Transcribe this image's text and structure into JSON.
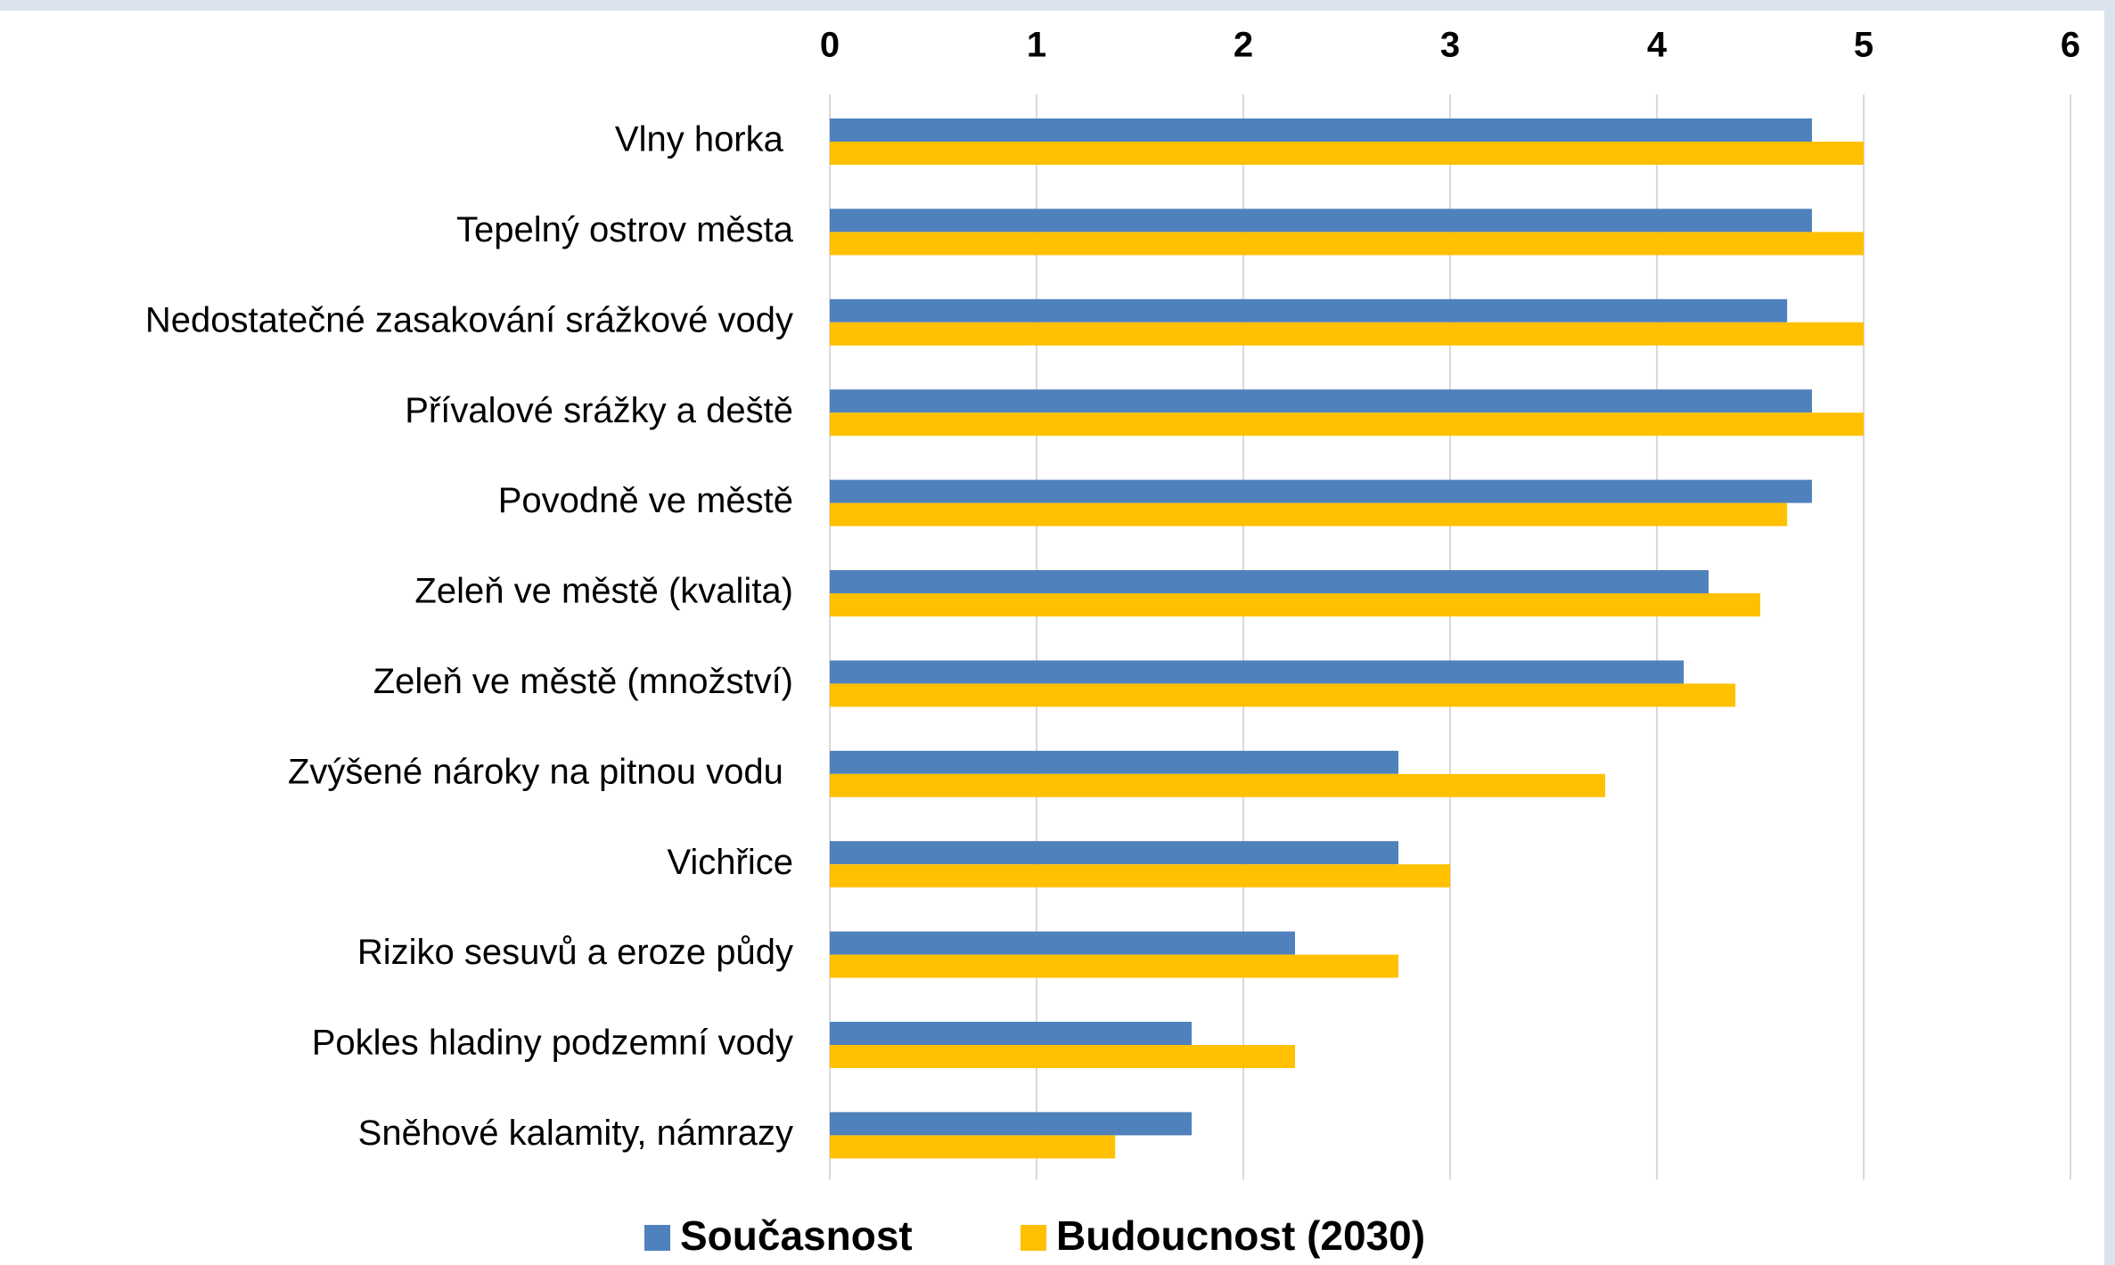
{
  "chart_data": {
    "type": "bar",
    "orientation": "horizontal",
    "categories": [
      "Vlny horka ",
      "Tepelný ostrov města",
      "Nedostatečné zasakování srážkové vody",
      "Přívalové srážky a deště",
      "Povodně ve městě",
      "Zeleň ve městě (kvalita)",
      "Zeleň ve městě (množství)",
      "Zvýšené nároky na pitnou vodu ",
      "Vichřice",
      "Riziko sesuvů a eroze půdy",
      "Pokles hladiny podzemní vody",
      "Sněhové kalamity, námrazy"
    ],
    "series": [
      {
        "name": "Současnost",
        "color": "#4f81bd",
        "values": [
          4.75,
          4.75,
          4.63,
          4.75,
          4.75,
          4.25,
          4.13,
          2.75,
          2.75,
          2.25,
          1.75,
          1.75
        ]
      },
      {
        "name": "Budoucnost (2030)",
        "color": "#ffc000",
        "values": [
          5,
          5,
          5,
          5,
          4.63,
          4.5,
          4.38,
          3.75,
          3,
          2.75,
          2.25,
          1.38
        ]
      }
    ],
    "xlim": [
      0,
      6
    ],
    "xticks": [
      0,
      1,
      2,
      3,
      4,
      5,
      6
    ],
    "grid": true,
    "legend": "bottom"
  }
}
